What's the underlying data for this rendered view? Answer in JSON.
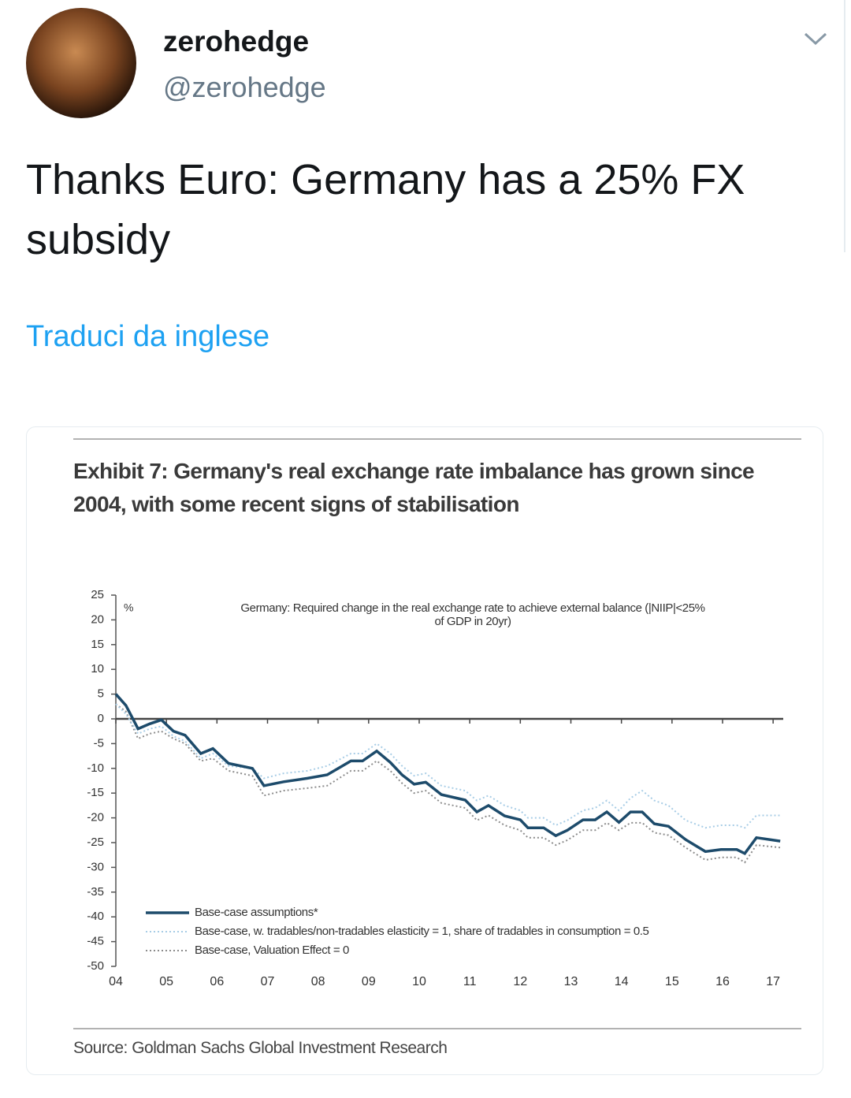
{
  "tweet": {
    "name": "zerohedge",
    "handle": "@zerohedge",
    "text": "Thanks Euro: Germany has a 25% FX subsidy",
    "translate": "Traduci da inglese"
  },
  "chart_data": {
    "type": "line",
    "title": "Exhibit 7: Germany's real exchange rate imbalance has grown since 2004, with some recent signs of stabilisation",
    "subtitle": "Germany: Required change in the real exchange rate to achieve external balance (|NIIP|<25% of GDP in 20yr)",
    "y_unit": "%",
    "source": "Source: Goldman Sachs Global Investment Research",
    "x": [
      2004.0,
      2004.2,
      2004.44,
      2004.67,
      2004.9,
      2005.14,
      2005.37,
      2005.68,
      2005.92,
      2006.23,
      2006.7,
      2006.93,
      2007.32,
      2007.79,
      2008.18,
      2008.65,
      2008.88,
      2009.16,
      2009.43,
      2009.66,
      2009.9,
      2010.13,
      2010.44,
      2010.91,
      2011.14,
      2011.37,
      2011.69,
      2012.0,
      2012.15,
      2012.46,
      2012.7,
      2012.93,
      2013.24,
      2013.48,
      2013.71,
      2013.95,
      2014.18,
      2014.41,
      2014.65,
      2014.93,
      2015.27,
      2015.66,
      2015.97,
      2016.28,
      2016.44,
      2016.67,
      2017.14
    ],
    "series": [
      {
        "name": "Base-case assumptions*",
        "color": "#1d4b6b",
        "style": "solid",
        "values": [
          5,
          2.7,
          -2,
          -1,
          -0.2,
          -2.5,
          -3.3,
          -7,
          -6,
          -9,
          -10,
          -13.5,
          -12.7,
          -12,
          -11.3,
          -8.5,
          -8.5,
          -6.5,
          -8.8,
          -11.3,
          -13.2,
          -12.8,
          -15.3,
          -16.4,
          -18.8,
          -17.5,
          -19.6,
          -20.4,
          -22,
          -22,
          -23.6,
          -22.5,
          -20.4,
          -20.4,
          -18.8,
          -20.9,
          -18.8,
          -18.8,
          -21.2,
          -21.7,
          -24.4,
          -26.8,
          -26.4,
          -26.4,
          -27.2,
          -24,
          -24.7
        ]
      },
      {
        "name": "Base-case, w. tradables/non-tradables elasticity = 1, share of tradables in consumption = 0.5",
        "color": "#a8cde6",
        "style": "dotted",
        "values": [
          3,
          1,
          -3,
          -2,
          -1.5,
          -3.5,
          -4.5,
          -8,
          -7,
          -9.5,
          -10,
          -12,
          -11,
          -10.5,
          -9.5,
          -7,
          -7,
          -5,
          -7,
          -9.5,
          -11.5,
          -11,
          -13.5,
          -14.5,
          -16.5,
          -15.5,
          -17.5,
          -18.5,
          -20,
          -20,
          -21.5,
          -20.5,
          -18.5,
          -18,
          -16.5,
          -18.5,
          -16,
          -14.5,
          -16.5,
          -17.5,
          -20.5,
          -22,
          -21.5,
          -21.5,
          -22,
          -19.5,
          -19.5
        ]
      },
      {
        "name": "Base-case, Valuation Effect = 0",
        "color": "#8c8c8c",
        "style": "dotted",
        "values": [
          3,
          1.5,
          -4,
          -3,
          -2.5,
          -4,
          -5,
          -8.5,
          -8,
          -10.5,
          -11.5,
          -15.5,
          -14.5,
          -14,
          -13.5,
          -10.5,
          -10.5,
          -8.5,
          -10.5,
          -13,
          -15,
          -14.5,
          -17,
          -18,
          -20.5,
          -19.5,
          -21.5,
          -22.5,
          -24,
          -24,
          -25.5,
          -24.5,
          -22.5,
          -22.5,
          -21,
          -22.5,
          -21,
          -21,
          -23,
          -23.5,
          -26,
          -28.5,
          -28,
          -28,
          -29,
          -25.5,
          -26
        ]
      }
    ],
    "xlim": [
      2004,
      2017.2
    ],
    "xticks": [
      {
        "value": 2004,
        "label": "04"
      },
      {
        "value": 2005,
        "label": "05"
      },
      {
        "value": 2006,
        "label": "06"
      },
      {
        "value": 2007,
        "label": "07"
      },
      {
        "value": 2008,
        "label": "08"
      },
      {
        "value": 2009,
        "label": "09"
      },
      {
        "value": 2010,
        "label": "10"
      },
      {
        "value": 2011,
        "label": "11"
      },
      {
        "value": 2012,
        "label": "12"
      },
      {
        "value": 2013,
        "label": "13"
      },
      {
        "value": 2014,
        "label": "14"
      },
      {
        "value": 2015,
        "label": "15"
      },
      {
        "value": 2016,
        "label": "16"
      },
      {
        "value": 2017,
        "label": "17"
      }
    ],
    "ylim": [
      -50,
      25
    ],
    "yticks": [
      25,
      20,
      15,
      10,
      5,
      0,
      -5,
      -10,
      -15,
      -20,
      -25,
      -30,
      -35,
      -40,
      -45,
      -50
    ]
  }
}
